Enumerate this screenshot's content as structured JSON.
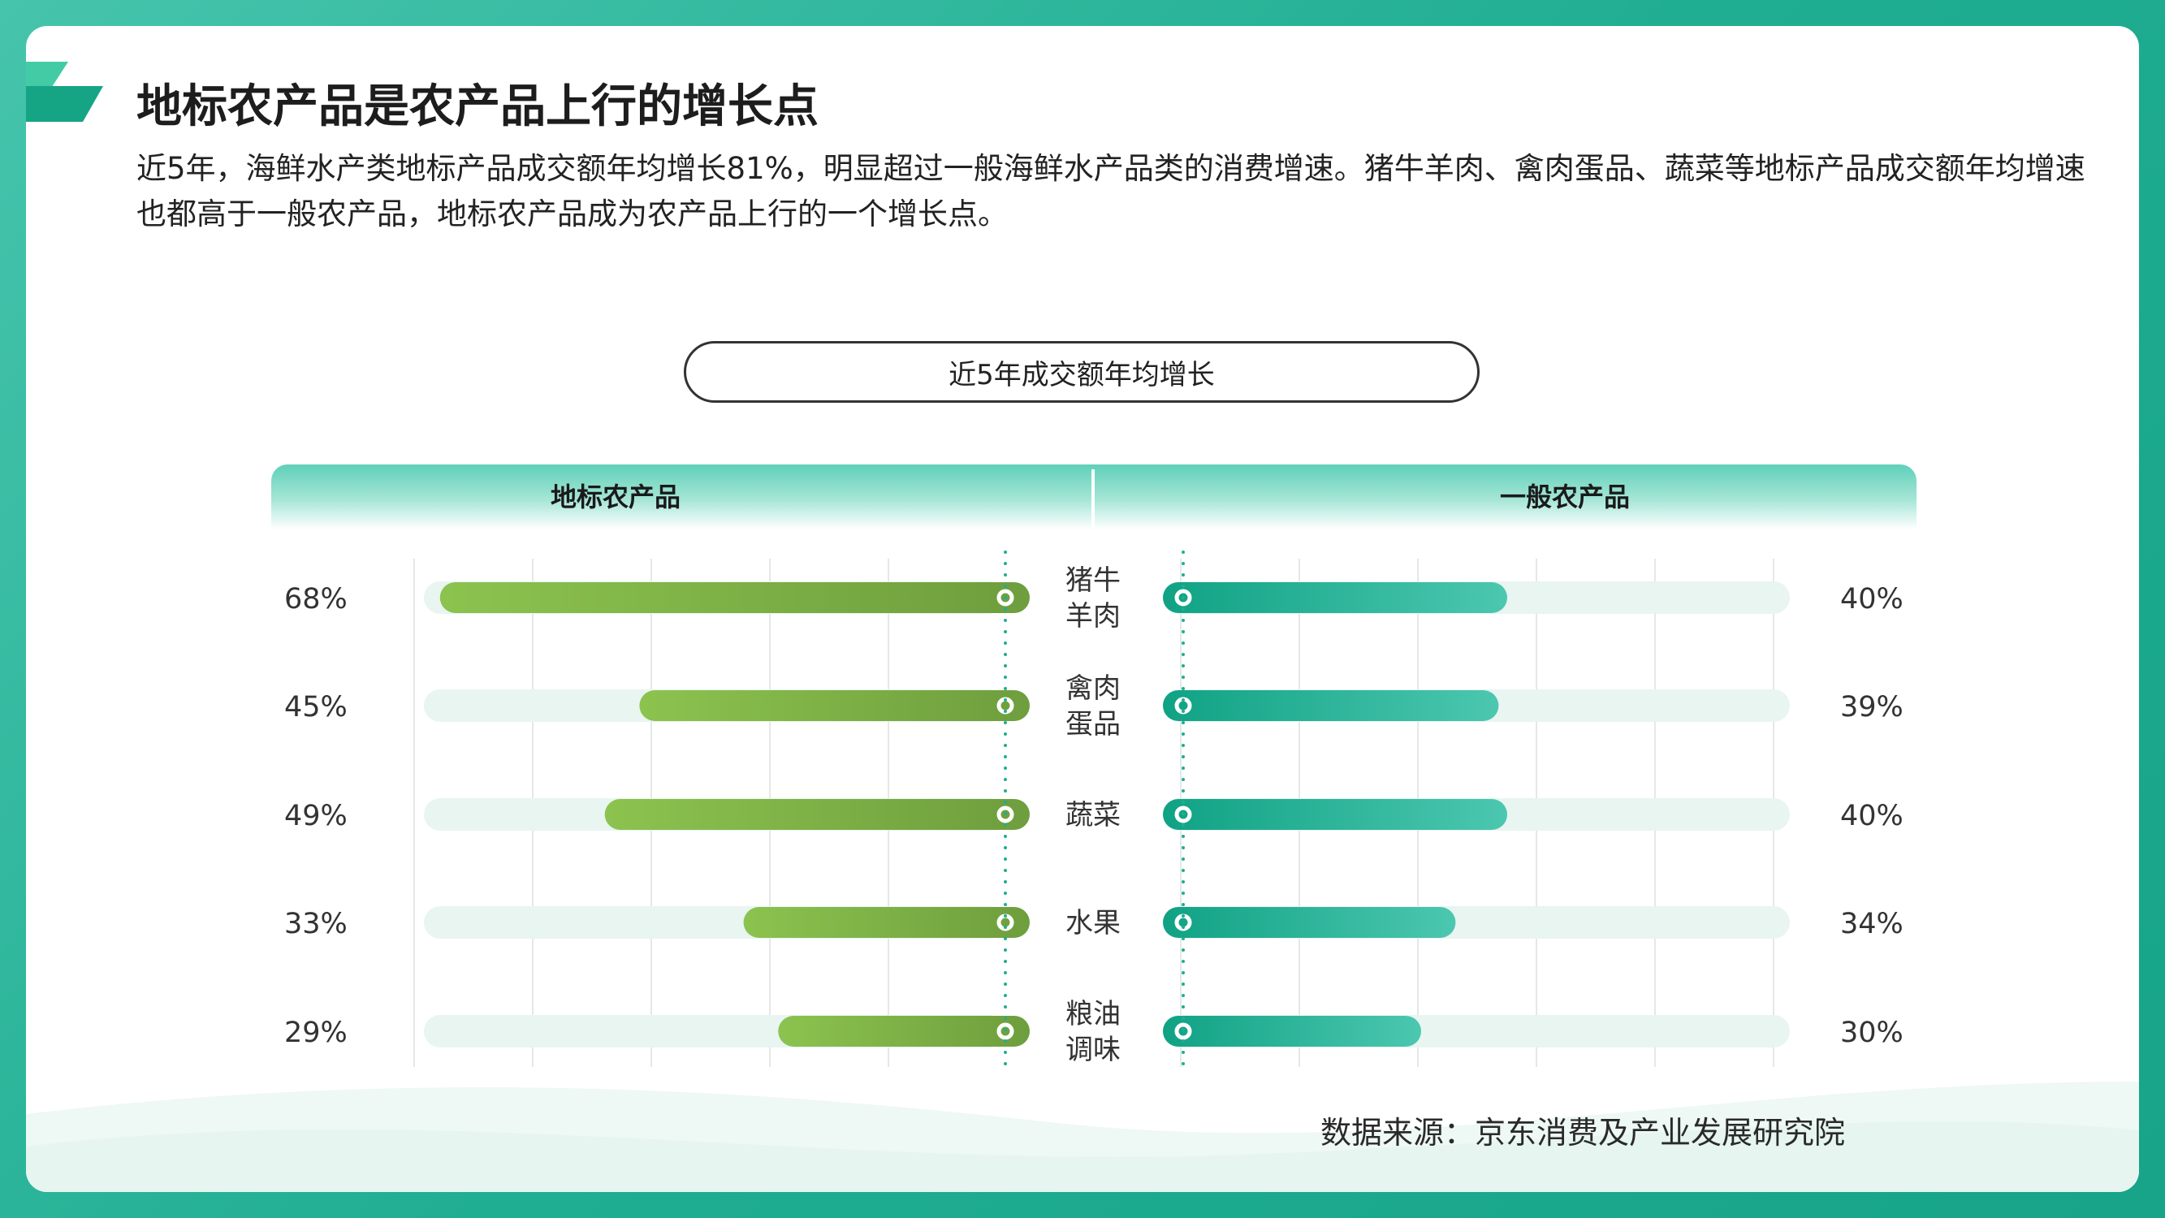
{
  "title": "地标农产品是农产品上行的增长点",
  "description": "近5年，海鲜水产类地标产品成交额年均增长81%，明显超过一般海鲜水产品类的消费增速。猪牛羊肉、禽肉蛋品、蔬菜等地标产品成交额年均增速也都高于一般农产品，地标农产品成为农产品上行的一个增长点。",
  "source": "数据来源：京东消费及产业发展研究院",
  "colors": {
    "frame": "#20ae92",
    "left_bar_start": "#8cc34f",
    "left_bar_end": "#6e9e3d",
    "right_bar_start": "#10a284",
    "right_bar_end": "#4cc7b0",
    "track": "#e8f5f1",
    "dotted_axis": "#1fae92"
  },
  "chart_data": {
    "type": "bar",
    "orientation": "horizontal-butterfly",
    "title": "近5年成交额年均增长",
    "categories": [
      [
        "猪牛",
        "羊肉"
      ],
      [
        "禽肉",
        "蛋品"
      ],
      [
        "蔬菜"
      ],
      [
        "水果"
      ],
      [
        "粮油",
        "调味"
      ]
    ],
    "series": [
      {
        "name": "地标农产品",
        "side": "left",
        "values": [
          68,
          45,
          49,
          33,
          29
        ],
        "labels": [
          "68%",
          "45%",
          "49%",
          "33%",
          "29%"
        ]
      },
      {
        "name": "一般农产品",
        "side": "right",
        "values": [
          40,
          39,
          40,
          34,
          30
        ],
        "labels": [
          "40%",
          "39%",
          "40%",
          "34%",
          "30%"
        ]
      }
    ],
    "unit": "%",
    "xlim": [
      0,
      70
    ],
    "grid": true
  }
}
